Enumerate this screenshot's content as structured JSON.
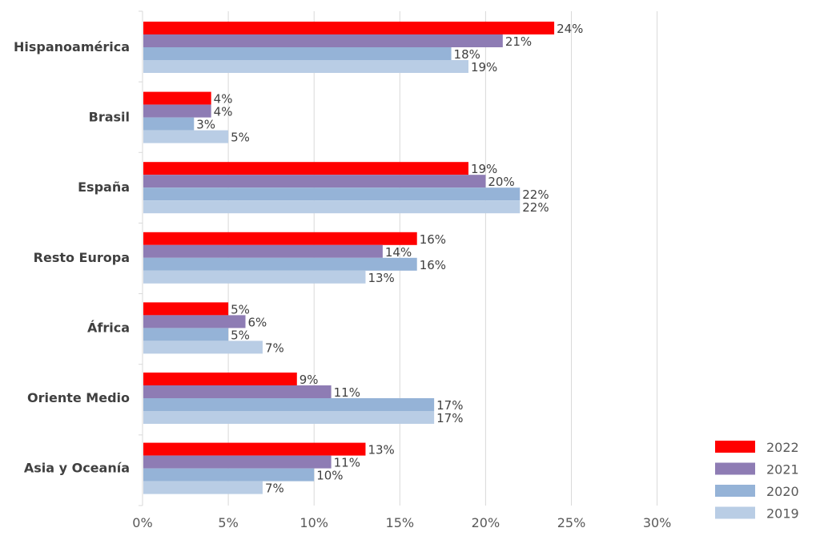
{
  "chart_data": {
    "type": "bar",
    "orientation": "horizontal",
    "title": "",
    "xlabel": "",
    "ylabel": "",
    "xlim": [
      0,
      30
    ],
    "x_ticks": [
      "0%",
      "5%",
      "10%",
      "15%",
      "20%",
      "25%",
      "30%"
    ],
    "categories": [
      "Hispanoamérica",
      "Brasil",
      "España",
      "Resto Europa",
      "África",
      "Oriente Medio",
      "Asia y Oceanía"
    ],
    "series": [
      {
        "name": "2022",
        "color": "#ff0000",
        "values": [
          24,
          4,
          19,
          16,
          5,
          9,
          13
        ]
      },
      {
        "name": "2021",
        "color": "#8e7cb4",
        "values": [
          21,
          4,
          20,
          14,
          6,
          11,
          11
        ]
      },
      {
        "name": "2020",
        "color": "#95b3d7",
        "values": [
          18,
          3,
          22,
          16,
          5,
          17,
          10
        ]
      },
      {
        "name": "2019",
        "color": "#b9cde5",
        "values": [
          19,
          5,
          22,
          13,
          7,
          17,
          7
        ]
      }
    ],
    "value_suffix": "%",
    "grid": "vertical",
    "legend_position": "bottom-right"
  }
}
